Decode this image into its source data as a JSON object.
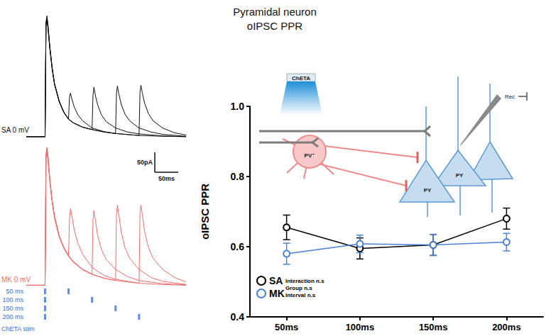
{
  "title": [
    "Pyramidal neuron",
    "oIPSC PPR"
  ],
  "chart_data": [
    {
      "type": "line",
      "title": "SA 0 mV",
      "color": "#111111",
      "xlim": [
        -40,
        300
      ],
      "ylim": [
        -20,
        320
      ],
      "grid": false,
      "tick_labels": false,
      "series": [
        {
          "x": [
            -40,
            0,
            2,
            4,
            6,
            10,
            15,
            20,
            30,
            40,
            50,
            52,
            54,
            57,
            62,
            70,
            80,
            100,
            125,
            150,
            200,
            250,
            300
          ],
          "values": [
            0,
            0,
            290,
            305,
            285,
            230,
            175,
            135,
            90,
            62,
            45,
            100,
            110,
            95,
            75,
            55,
            40,
            22,
            13,
            8,
            3,
            1,
            0
          ]
        },
        {
          "x": [
            -40,
            0,
            2,
            4,
            6,
            10,
            15,
            20,
            30,
            40,
            50,
            60,
            80,
            100,
            102,
            104,
            107,
            112,
            120,
            130,
            150,
            175,
            200,
            250,
            300
          ],
          "values": [
            0,
            0,
            282,
            295,
            278,
            225,
            172,
            133,
            89,
            61,
            44,
            35,
            24,
            18,
            105,
            125,
            105,
            80,
            55,
            38,
            22,
            12,
            7,
            2,
            0
          ]
        },
        {
          "x": [
            -40,
            0,
            2,
            4,
            6,
            10,
            15,
            20,
            30,
            40,
            50,
            60,
            80,
            100,
            125,
            150,
            152,
            154,
            157,
            162,
            170,
            180,
            200,
            225,
            250,
            300
          ],
          "values": [
            0,
            0,
            286,
            300,
            282,
            228,
            174,
            134,
            90,
            62,
            45,
            35,
            24,
            18,
            12,
            8,
            110,
            128,
            108,
            82,
            57,
            40,
            22,
            12,
            6,
            1
          ]
        },
        {
          "x": [
            -40,
            0,
            2,
            4,
            6,
            10,
            15,
            20,
            30,
            40,
            50,
            60,
            80,
            100,
            125,
            150,
            200,
            202,
            204,
            207,
            212,
            220,
            230,
            250,
            275,
            300
          ],
          "values": [
            0,
            0,
            280,
            292,
            276,
            224,
            171,
            132,
            88,
            61,
            44,
            35,
            24,
            18,
            12,
            8,
            3,
            112,
            130,
            110,
            84,
            58,
            40,
            22,
            10,
            4
          ]
        }
      ]
    },
    {
      "type": "line",
      "title": "MK 0 mV",
      "color": "#f26b6b",
      "xlim": [
        -40,
        300
      ],
      "ylim": [
        -10,
        360
      ],
      "grid": false,
      "tick_labels": false,
      "scale_bar": {
        "x": 50,
        "x_label": "50ms",
        "y": 50,
        "y_label": "50pA"
      },
      "series": [
        {
          "x": [
            -40,
            0,
            2,
            4,
            6,
            10,
            15,
            20,
            30,
            40,
            50,
            52,
            54,
            57,
            62,
            70,
            80,
            100,
            125,
            150,
            200,
            250,
            300
          ],
          "values": [
            0,
            0,
            330,
            348,
            330,
            270,
            215,
            175,
            125,
            95,
            75,
            170,
            193,
            175,
            140,
            105,
            78,
            45,
            25,
            15,
            5,
            2,
            0
          ]
        },
        {
          "x": [
            -40,
            0,
            2,
            4,
            6,
            10,
            15,
            20,
            30,
            40,
            50,
            60,
            80,
            100,
            102,
            104,
            107,
            112,
            120,
            130,
            150,
            175,
            200,
            250,
            300
          ],
          "values": [
            0,
            0,
            325,
            340,
            322,
            265,
            212,
            172,
            123,
            94,
            74,
            59,
            40,
            28,
            165,
            188,
            165,
            125,
            90,
            65,
            40,
            22,
            12,
            4,
            1
          ]
        },
        {
          "x": [
            -40,
            0,
            2,
            4,
            6,
            10,
            15,
            20,
            30,
            40,
            50,
            60,
            80,
            100,
            125,
            150,
            152,
            154,
            157,
            162,
            170,
            180,
            200,
            225,
            250,
            300
          ],
          "values": [
            0,
            0,
            328,
            345,
            327,
            268,
            214,
            174,
            124,
            95,
            75,
            60,
            40,
            28,
            18,
            12,
            180,
            202,
            178,
            135,
            95,
            68,
            40,
            20,
            10,
            2
          ]
        },
        {
          "x": [
            -40,
            0,
            2,
            4,
            6,
            10,
            15,
            20,
            30,
            40,
            50,
            60,
            80,
            100,
            125,
            150,
            200,
            202,
            204,
            207,
            212,
            220,
            230,
            250,
            275,
            300
          ],
          "values": [
            0,
            0,
            320,
            335,
            318,
            262,
            210,
            170,
            122,
            93,
            73,
            58,
            39,
            27,
            18,
            12,
            5,
            180,
            202,
            178,
            135,
            95,
            68,
            40,
            20,
            8
          ]
        }
      ]
    },
    {
      "type": "scatter",
      "title": "ChETA stim",
      "color": "#3a6ee0",
      "marker": "rect",
      "xlim": [
        -40,
        300
      ],
      "tick_labels": "y",
      "categories": [
        "50 ms",
        "100 ms",
        "150 ms",
        "200 ms"
      ],
      "stimuli": [
        [
          0,
          50
        ],
        [
          0,
          100
        ],
        [
          0,
          150
        ],
        [
          0,
          200
        ]
      ]
    },
    {
      "type": "line",
      "ylabel": "oIPSC PPR",
      "categories": [
        "50ms",
        "100ms",
        "150ms",
        "200ms"
      ],
      "ylim": [
        0.4,
        1.0
      ],
      "yticks": [
        0.4,
        0.6,
        0.8,
        {
          "value": 1.0,
          "label": "1.0"
        }
      ],
      "grid": false,
      "legend": "lower left",
      "series": [
        {
          "name": "SA",
          "color": "#000000",
          "marker": "open circle",
          "values": [
            0.655,
            0.595,
            0.605,
            0.68
          ],
          "errors": [
            0.035,
            0.03,
            0.03,
            0.03
          ]
        },
        {
          "name": "MK",
          "color": "#4a82d8",
          "marker": "open circle",
          "values": [
            0.58,
            0.608,
            0.605,
            0.613
          ],
          "errors": [
            0.03,
            0.025,
            0.03,
            0.025
          ]
        }
      ],
      "annotations": [
        "Interaction n.s",
        "Group n.s",
        "Interval n.s"
      ]
    }
  ],
  "diagram": {
    "light": "ChETA",
    "interneuron": "PV⁺",
    "pyramidal": [
      "PY",
      "PY"
    ],
    "electrode": "Rec"
  }
}
